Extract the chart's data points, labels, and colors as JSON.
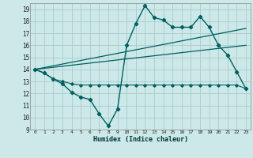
{
  "xlabel": "Humidex (Indice chaleur)",
  "bg_color": "#cce8e8",
  "grid_color": "#aacccc",
  "line_color": "#006060",
  "xlim": [
    -0.5,
    23.5
  ],
  "ylim": [
    9,
    19.5
  ],
  "yticks": [
    9,
    10,
    11,
    12,
    13,
    14,
    15,
    16,
    17,
    18,
    19
  ],
  "xticks": [
    0,
    1,
    2,
    3,
    4,
    5,
    6,
    7,
    8,
    9,
    10,
    11,
    12,
    13,
    14,
    15,
    16,
    17,
    18,
    19,
    20,
    21,
    22,
    23
  ],
  "line1_x": [
    0,
    1,
    2,
    3,
    4,
    5,
    6,
    7,
    8,
    9,
    10,
    11,
    12,
    13,
    14,
    15,
    16,
    17,
    18,
    19,
    20,
    21,
    22,
    23
  ],
  "line1_y": [
    14.0,
    13.7,
    13.2,
    12.8,
    12.1,
    11.7,
    11.5,
    10.3,
    9.3,
    10.7,
    16.0,
    17.8,
    19.3,
    18.3,
    18.1,
    17.5,
    17.5,
    17.5,
    18.4,
    17.5,
    16.0,
    15.2,
    13.8,
    12.4
  ],
  "line2_x": [
    0,
    1,
    2,
    3,
    4,
    5,
    6,
    7,
    8,
    9,
    10,
    11,
    12,
    13,
    14,
    15,
    16,
    17,
    18,
    19,
    20,
    21,
    22,
    23
  ],
  "line2_y": [
    14.0,
    13.7,
    13.2,
    13.0,
    12.8,
    12.7,
    12.7,
    12.7,
    12.7,
    12.7,
    12.7,
    12.7,
    12.7,
    12.7,
    12.7,
    12.7,
    12.7,
    12.7,
    12.7,
    12.7,
    12.7,
    12.7,
    12.7,
    12.4
  ],
  "line3_x": [
    0,
    23
  ],
  "line3_y": [
    14.0,
    17.4
  ],
  "line4_x": [
    0,
    23
  ],
  "line4_y": [
    14.0,
    16.0
  ]
}
